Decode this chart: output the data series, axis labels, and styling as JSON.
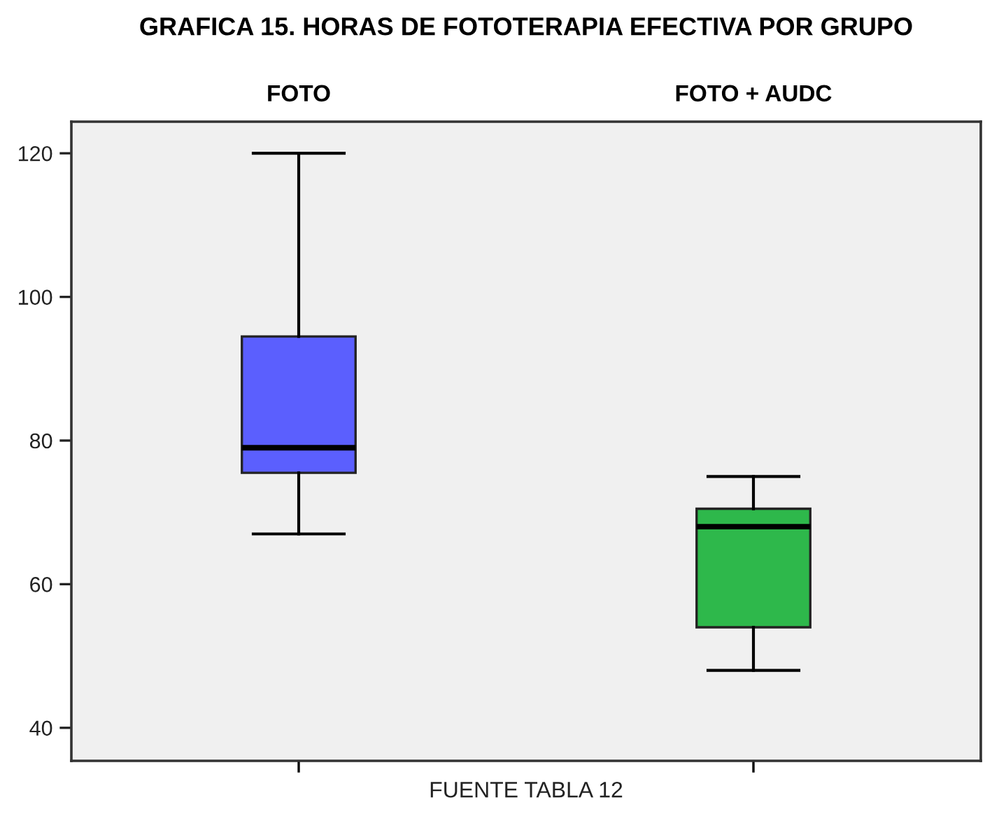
{
  "chart_data": {
    "type": "box",
    "title": "GRAFICA 15. HORAS DE FOTOTERAPIA EFECTIVA POR GRUPO",
    "categories": [
      "FOTO",
      "FOTO + AUDC"
    ],
    "series": [
      {
        "colors": [
          "#5b5ffe",
          "#2eb84b"
        ],
        "boxes": [
          {
            "low": 67,
            "q1": 75.5,
            "median": 79,
            "q3": 94.5,
            "high": 120
          },
          {
            "low": 48,
            "q1": 54,
            "median": 68,
            "q3": 70.5,
            "high": 75
          }
        ]
      }
    ],
    "ylim": [
      35.4,
      124.4
    ],
    "yticks": [
      40,
      60,
      80,
      100,
      120
    ],
    "grid": false,
    "annotations": [
      "FUENTE TABLA 12"
    ]
  }
}
